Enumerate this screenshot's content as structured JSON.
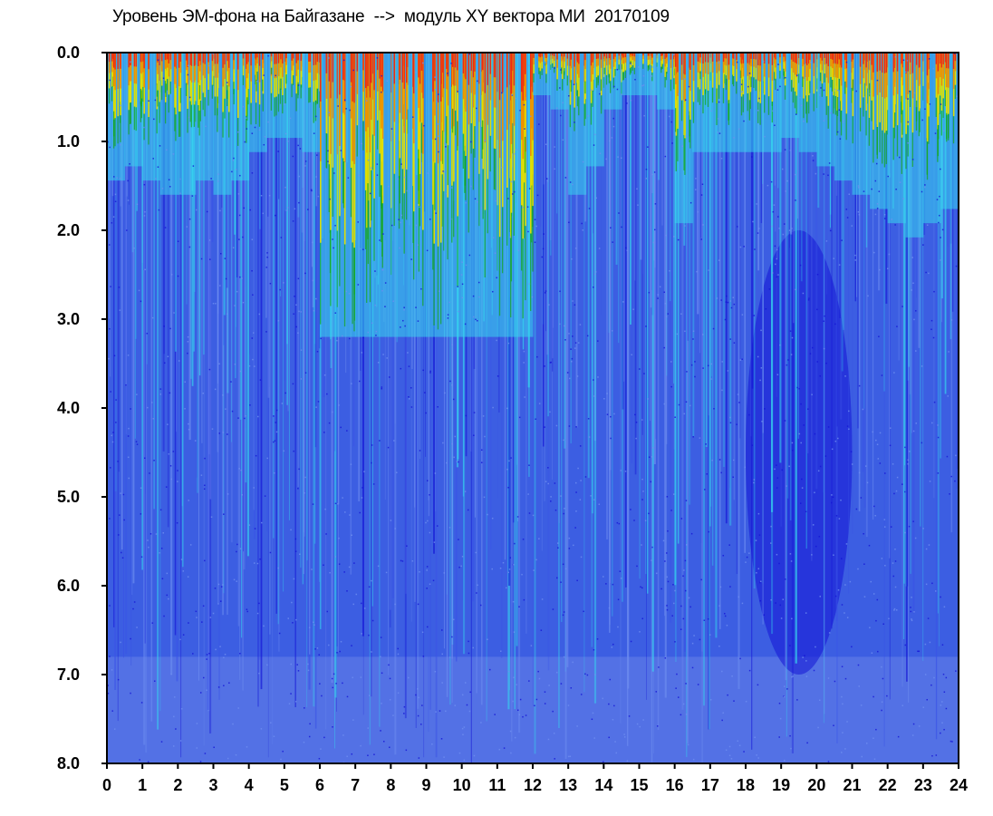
{
  "chart_data": {
    "type": "heatmap",
    "title": "Уровень ЭМ-фона на Байгазане  -->  модуль XY вектора МИ  20170109",
    "xlabel": "",
    "ylabel": "",
    "xlim": [
      0,
      24
    ],
    "ylim": [
      0.0,
      8.0
    ],
    "y_inverted": true,
    "x_ticks": [
      "0",
      "1",
      "2",
      "3",
      "4",
      "5",
      "6",
      "7",
      "8",
      "9",
      "10",
      "11",
      "12",
      "13",
      "14",
      "15",
      "16",
      "17",
      "18",
      "19",
      "20",
      "21",
      "22",
      "23",
      "24"
    ],
    "y_ticks": [
      "0.0",
      "1.0",
      "2.0",
      "3.0",
      "4.0",
      "5.0",
      "6.0",
      "7.0",
      "8.0"
    ],
    "grid": false,
    "colormap": [
      "#1414d6",
      "#3a52e6",
      "#6f8ff0",
      "#36d6ee",
      "#14a814",
      "#f0e200",
      "#f08a00",
      "#ee2a12"
    ],
    "background_color": "#3c5ee2",
    "x_bins": [
      0,
      0.5,
      1,
      1.5,
      2,
      2.5,
      3,
      3.5,
      4,
      4.5,
      5,
      5.5,
      6,
      6.5,
      7,
      7.5,
      8,
      8.5,
      9,
      9.5,
      10,
      10.5,
      11,
      11.5,
      12,
      12.5,
      13,
      13.5,
      14,
      14.5,
      15,
      15.5,
      16,
      16.5,
      17,
      17.5,
      18,
      18.5,
      19,
      19.5,
      20,
      20.5,
      21,
      21.5,
      22,
      22.5,
      23,
      23.5
    ],
    "top_intensity_depth": [
      0.9,
      0.8,
      0.9,
      1.0,
      1.0,
      0.9,
      1.0,
      0.9,
      0.7,
      0.6,
      0.6,
      0.7,
      2.6,
      2.8,
      2.4,
      2.2,
      2.0,
      2.4,
      2.6,
      2.2,
      2.0,
      2.4,
      2.5,
      2.6,
      0.3,
      0.4,
      1.0,
      0.8,
      0.4,
      0.3,
      0.3,
      0.4,
      1.2,
      0.7,
      0.7,
      0.7,
      0.7,
      0.7,
      0.6,
      0.7,
      0.8,
      0.9,
      1.0,
      1.1,
      1.2,
      1.3,
      1.2,
      1.1
    ],
    "dark_region": {
      "x_range": [
        18,
        21
      ],
      "y_range": [
        2.0,
        7.0
      ],
      "color": "#1414d6"
    }
  }
}
